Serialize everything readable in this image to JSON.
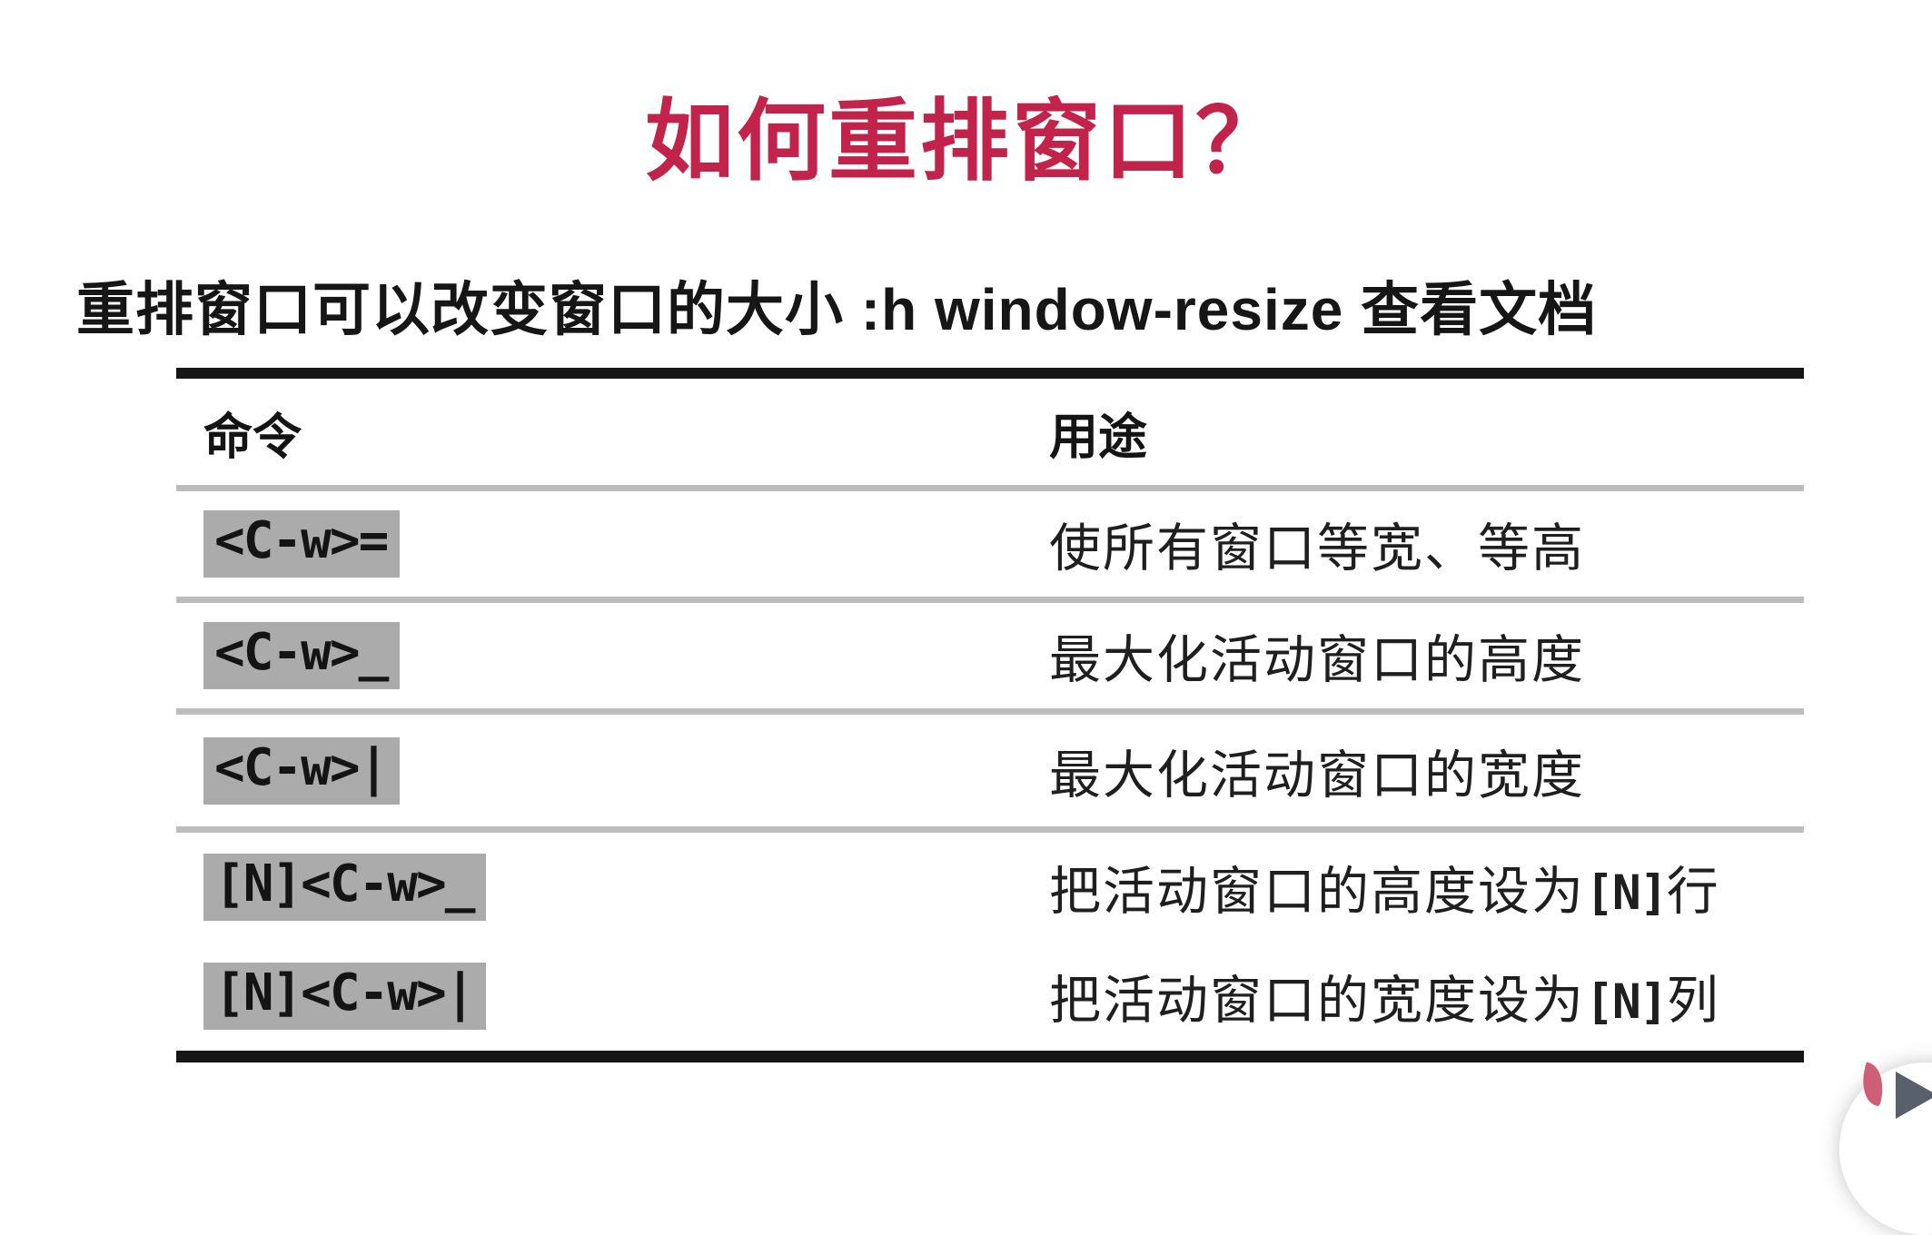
{
  "page": {
    "title": "如何重排窗口？",
    "subtitle": "重排窗口可以改变窗口的大小 :h window-resize 查看文档"
  },
  "table": {
    "headers": {
      "command": "命令",
      "purpose": "用途"
    },
    "rows": [
      {
        "command": "<C-w>=",
        "purpose_prefix": "使所有窗口等宽、等高",
        "purpose_n": "",
        "purpose_suffix": ""
      },
      {
        "command": "<C-w>_",
        "purpose_prefix": "最大化活动窗口的高度",
        "purpose_n": "",
        "purpose_suffix": ""
      },
      {
        "command": "<C-w>|",
        "purpose_prefix": "最大化活动窗口的宽度",
        "purpose_n": "",
        "purpose_suffix": ""
      },
      {
        "command": "[N]<C-w>_",
        "purpose_prefix": "把活动窗口的高度设为",
        "purpose_n": "[N]",
        "purpose_suffix": "行"
      },
      {
        "command": "[N]<C-w>|",
        "purpose_prefix": "把活动窗口的宽度设为",
        "purpose_n": "[N]",
        "purpose_suffix": "列"
      }
    ]
  },
  "colors": {
    "title_red": "#c2234a",
    "text_black": "#1b1b1b",
    "command_highlight_bg": "#ababab",
    "separator_gray": "#bdbdbd",
    "table_border_black": "#161616",
    "play_triangle_gray": "#57606b",
    "flame_pink": "#ce5f77"
  },
  "player_badge": {
    "icon": "play-icon"
  }
}
